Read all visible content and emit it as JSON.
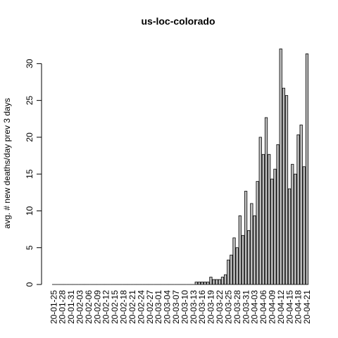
{
  "chart_data": {
    "type": "bar",
    "title": "us-loc-colorado",
    "xlabel": "",
    "ylabel": "avg. # new deaths/day prev  3  days",
    "ylim": [
      0,
      33
    ],
    "yticks": [
      0,
      5,
      10,
      15,
      20,
      25,
      30
    ],
    "grid": false,
    "legend": "none",
    "bar_color": "#bebebe",
    "bar_border_color": "#000000",
    "categories": [
      "20-01-25",
      "20-01-26",
      "20-01-27",
      "20-01-28",
      "20-01-29",
      "20-01-30",
      "20-01-31",
      "20-02-01",
      "20-02-02",
      "20-02-03",
      "20-02-04",
      "20-02-05",
      "20-02-06",
      "20-02-07",
      "20-02-08",
      "20-02-09",
      "20-02-10",
      "20-02-11",
      "20-02-12",
      "20-02-13",
      "20-02-14",
      "20-02-15",
      "20-02-16",
      "20-02-17",
      "20-02-18",
      "20-02-19",
      "20-02-20",
      "20-02-21",
      "20-02-22",
      "20-02-23",
      "20-02-24",
      "20-02-25",
      "20-02-26",
      "20-02-27",
      "20-02-28",
      "20-02-29",
      "20-03-01",
      "20-03-02",
      "20-03-03",
      "20-03-04",
      "20-03-05",
      "20-03-06",
      "20-03-07",
      "20-03-08",
      "20-03-09",
      "20-03-10",
      "20-03-11",
      "20-03-12",
      "20-03-13",
      "20-03-14",
      "20-03-15",
      "20-03-16",
      "20-03-17",
      "20-03-18",
      "20-03-19",
      "20-03-20",
      "20-03-21",
      "20-03-22",
      "20-03-23",
      "20-03-24",
      "20-03-25",
      "20-03-26",
      "20-03-27",
      "20-03-28",
      "20-03-29",
      "20-03-30",
      "20-03-31",
      "20-04-01",
      "20-04-02",
      "20-04-03",
      "20-04-04",
      "20-04-05",
      "20-04-06",
      "20-04-07",
      "20-04-08",
      "20-04-09",
      "20-04-10",
      "20-04-11",
      "20-04-12",
      "20-04-13",
      "20-04-14",
      "20-04-15",
      "20-04-16",
      "20-04-17",
      "20-04-18",
      "20-04-19",
      "20-04-20",
      "20-04-21"
    ],
    "values": [
      0,
      0,
      0,
      0,
      0,
      0,
      0,
      0,
      0,
      0,
      0,
      0,
      0,
      0,
      0,
      0,
      0,
      0,
      0,
      0,
      0,
      0,
      0,
      0,
      0,
      0,
      0,
      0,
      0,
      0,
      0,
      0,
      0,
      0,
      0,
      0,
      0,
      0,
      0,
      0,
      0,
      0,
      0,
      0,
      0,
      0,
      0,
      0,
      0,
      0.33,
      0.33,
      0.33,
      0.33,
      0.33,
      1.0,
      0.67,
      0.67,
      0.67,
      1.0,
      1.33,
      3.33,
      4.0,
      6.33,
      5.0,
      9.33,
      6.67,
      12.67,
      7.33,
      11.0,
      9.33,
      14.0,
      20.0,
      17.67,
      22.67,
      17.67,
      14.33,
      15.67,
      19.0,
      32.0,
      26.67,
      25.67,
      13.0,
      16.33,
      15.0,
      20.33,
      21.67,
      16.0,
      31.33
    ],
    "xtick_labels": [
      "20-01-25",
      "20-01-28",
      "20-01-31",
      "20-02-03",
      "20-02-06",
      "20-02-09",
      "20-02-12",
      "20-02-15",
      "20-02-18",
      "20-02-21",
      "20-02-24",
      "20-02-27",
      "20-03-01",
      "20-03-04",
      "20-03-07",
      "20-03-10",
      "20-03-13",
      "20-03-16",
      "20-03-19",
      "20-03-22",
      "20-03-25",
      "20-03-28",
      "20-03-31",
      "20-04-03",
      "20-04-06",
      "20-04-09",
      "20-04-12",
      "20-04-15",
      "20-04-18",
      "20-04-21"
    ]
  }
}
